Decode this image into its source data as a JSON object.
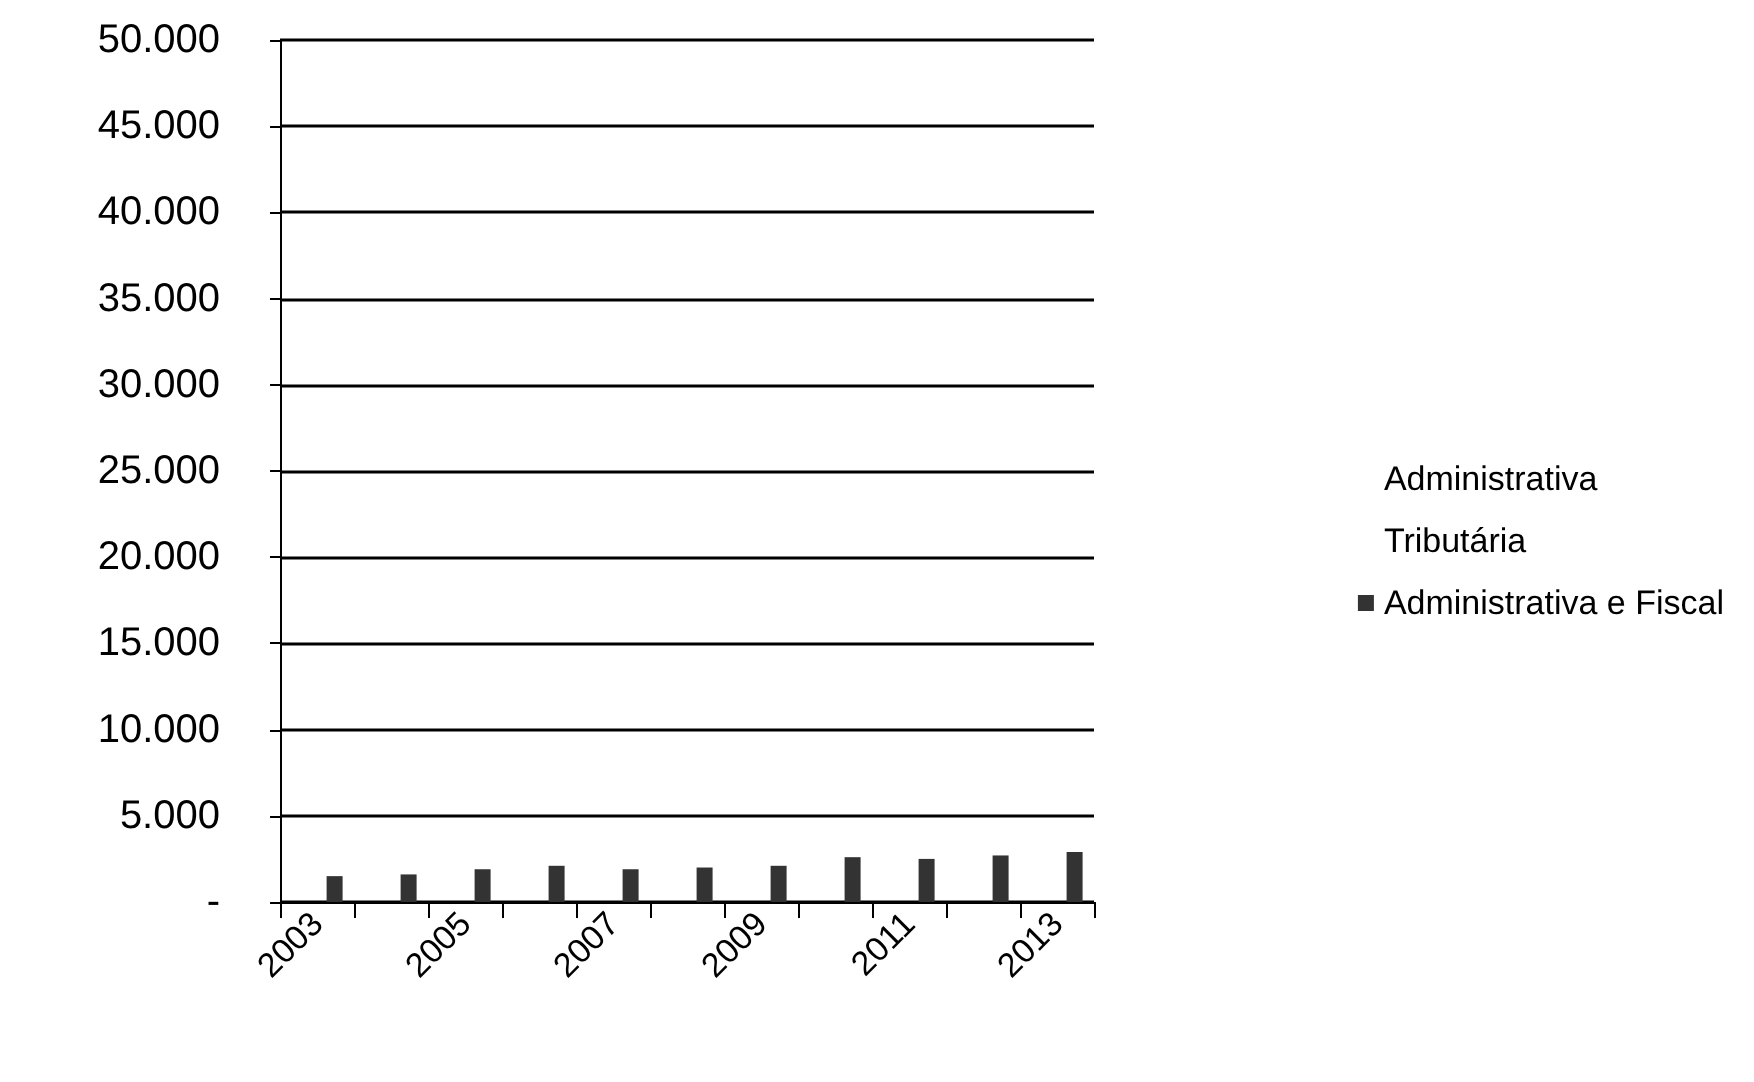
{
  "chart_data": {
    "type": "bar",
    "categories": [
      "2003",
      null,
      "2005",
      null,
      "2007",
      null,
      "2009",
      null,
      "2011",
      null,
      "2013"
    ],
    "series": [
      {
        "name": "Administrativa",
        "values": [
          null,
          null,
          null,
          null,
          null,
          null,
          null,
          null,
          null,
          null,
          null
        ]
      },
      {
        "name": "Tributária",
        "values": [
          null,
          null,
          null,
          null,
          null,
          null,
          null,
          null,
          null,
          null,
          null
        ]
      },
      {
        "name": "Administrativa e Fiscal",
        "color": "#333333",
        "values": [
          1500,
          1600,
          1900,
          2100,
          1900,
          2000,
          2100,
          2600,
          2500,
          2700,
          2900
        ]
      }
    ],
    "ylim": [
      0,
      50000
    ],
    "yticks": [
      {
        "value": 0,
        "label": "-"
      },
      {
        "value": 5000,
        "label": "5.000"
      },
      {
        "value": 10000,
        "label": "10.000"
      },
      {
        "value": 15000,
        "label": "15.000"
      },
      {
        "value": 20000,
        "label": "20.000"
      },
      {
        "value": 25000,
        "label": "25.000"
      },
      {
        "value": 30000,
        "label": "30.000"
      },
      {
        "value": 35000,
        "label": "35.000"
      },
      {
        "value": 40000,
        "label": "40.000"
      },
      {
        "value": 45000,
        "label": "45.000"
      },
      {
        "value": 50000,
        "label": "50.000"
      }
    ],
    "grid": "y",
    "legend": "right"
  }
}
